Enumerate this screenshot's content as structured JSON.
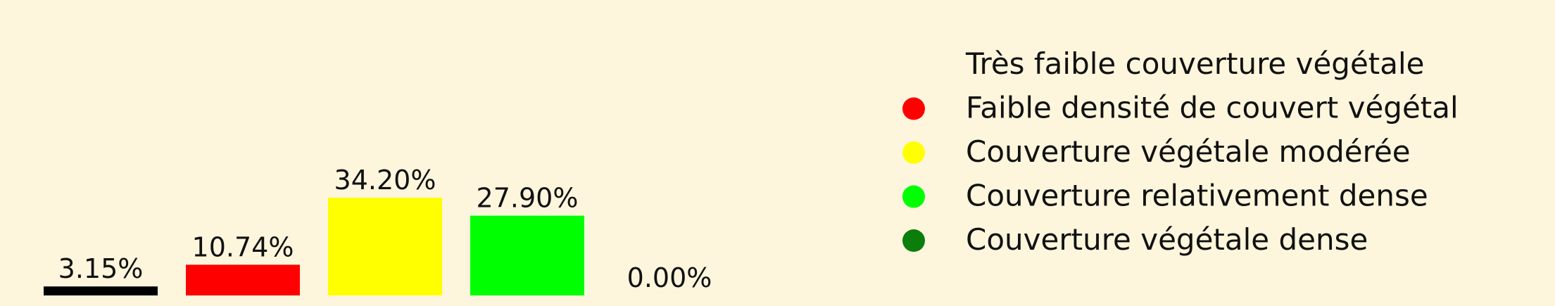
{
  "chart_data": {
    "type": "bar",
    "categories": [
      "Très faible couverture végétale",
      "Faible densité de couvert végétal",
      "Couverture végétale modérée",
      "Couverture relativement dense",
      "Couverture végétale dense"
    ],
    "values": [
      3.15,
      10.74,
      34.2,
      27.9,
      0.0
    ],
    "value_labels": [
      "3.15%",
      "10.74%",
      "34.20%",
      "27.90%",
      "0.00%"
    ],
    "colors": [
      "#000000",
      "#ff0000",
      "#ffff00",
      "#00ff00",
      "#0a7d0a"
    ],
    "ylim": [
      0,
      34.2
    ],
    "legend_position": "right",
    "grid": false
  }
}
